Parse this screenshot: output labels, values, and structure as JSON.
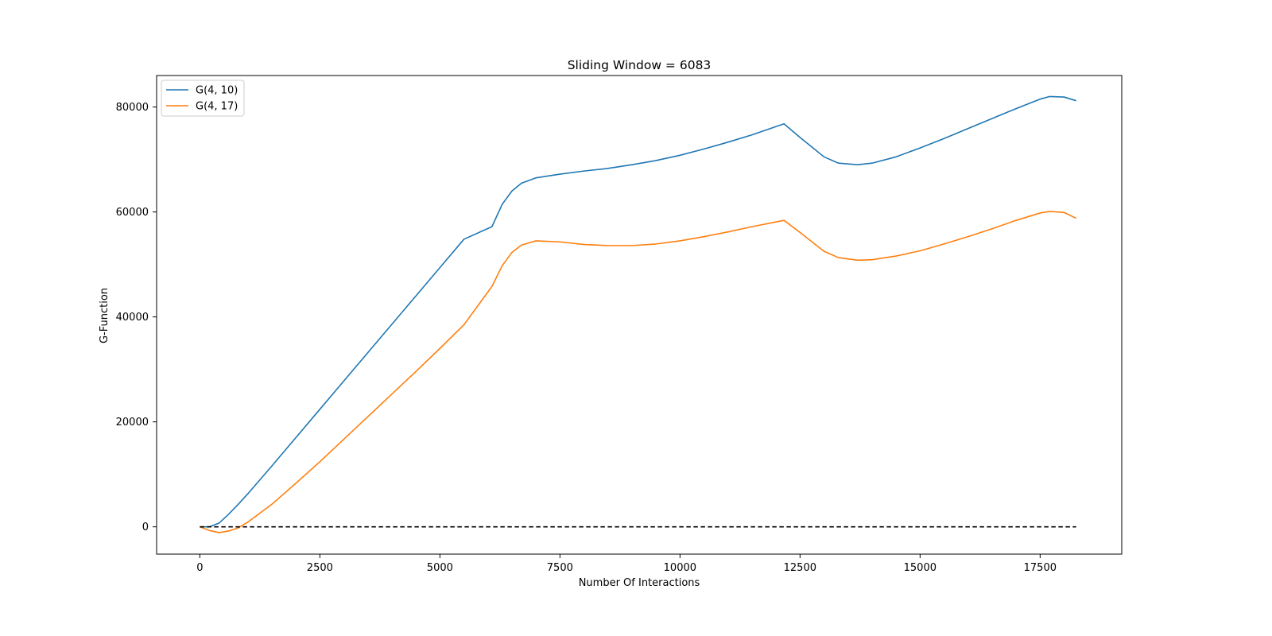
{
  "chart_data": {
    "type": "line",
    "title": "Sliding Window = 6083",
    "xlabel": "Number Of Interactions",
    "ylabel": "G-Function",
    "xlim": [
      -900,
      19200
    ],
    "ylim": [
      -5200,
      86000
    ],
    "xticks": [
      0,
      2500,
      5000,
      7500,
      10000,
      12500,
      15000,
      17500
    ],
    "yticks": [
      0,
      20000,
      40000,
      60000,
      80000
    ],
    "grid": false,
    "legend_position": "top-left",
    "series": [
      {
        "name": "G(4, 10)",
        "color": "#1f77b4",
        "x": [
          0,
          200,
          400,
          600,
          800,
          1000,
          1500,
          2000,
          2500,
          3000,
          3500,
          4000,
          4500,
          5000,
          5500,
          6083,
          6300,
          6500,
          6700,
          7000,
          7500,
          8000,
          8500,
          9000,
          9500,
          10000,
          10500,
          11000,
          11500,
          12166,
          12500,
          13000,
          13300,
          13700,
          14000,
          14500,
          15000,
          15500,
          16000,
          16500,
          17000,
          17500,
          17700,
          18000,
          18250
        ],
        "y": [
          0,
          0,
          700,
          2400,
          4300,
          6300,
          11600,
          17000,
          22400,
          27800,
          33200,
          38600,
          44000,
          49400,
          54800,
          57200,
          61500,
          64000,
          65500,
          66500,
          67200,
          67800,
          68300,
          69000,
          69800,
          70800,
          72000,
          73300,
          74700,
          76800,
          74200,
          70500,
          69300,
          69000,
          69300,
          70500,
          72200,
          74000,
          75900,
          77800,
          79700,
          81500,
          82000,
          81900,
          81200
        ]
      },
      {
        "name": "G(4, 17)",
        "color": "#ff7f0e",
        "x": [
          0,
          200,
          400,
          600,
          800,
          1000,
          1500,
          2000,
          2500,
          3000,
          3500,
          4000,
          4500,
          5000,
          5500,
          6083,
          6300,
          6500,
          6700,
          7000,
          7500,
          8000,
          8500,
          9000,
          9500,
          10000,
          10500,
          11000,
          11500,
          12166,
          12500,
          13000,
          13300,
          13700,
          14000,
          14500,
          15000,
          15500,
          16000,
          16500,
          17000,
          17500,
          17700,
          18000,
          18250
        ],
        "y": [
          0,
          -700,
          -1100,
          -800,
          -200,
          900,
          4300,
          8300,
          12400,
          16700,
          21000,
          25300,
          29600,
          34000,
          38500,
          45800,
          49800,
          52300,
          53700,
          54500,
          54300,
          53800,
          53600,
          53600,
          53900,
          54500,
          55300,
          56200,
          57200,
          58400,
          56100,
          52500,
          51300,
          50800,
          50900,
          51600,
          52600,
          53900,
          55300,
          56800,
          58400,
          59800,
          60100,
          59900,
          58800
        ]
      },
      {
        "name": "",
        "color": "#000000",
        "dashed": true,
        "x": [
          0,
          18250
        ],
        "y": [
          0,
          0
        ]
      }
    ]
  }
}
